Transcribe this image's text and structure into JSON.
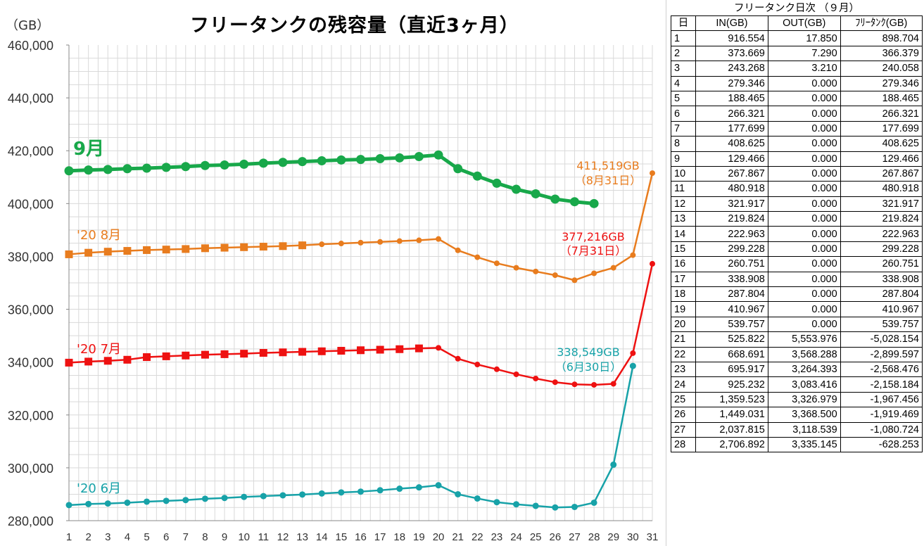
{
  "chart_data": {
    "type": "line",
    "title": "フリータンクの残容量（直近3ヶ月）",
    "unit_label": "（GB）",
    "ylim": [
      280000,
      460000
    ],
    "y_ticks": [
      "280,000",
      "300,000",
      "320,000",
      "340,000",
      "360,000",
      "380,000",
      "400,000",
      "420,000",
      "440,000",
      "460,000"
    ],
    "y_tick_values": [
      280000,
      300000,
      320000,
      340000,
      360000,
      380000,
      400000,
      420000,
      440000,
      460000
    ],
    "x_categories": [
      "1",
      "2",
      "3",
      "4",
      "5",
      "6",
      "7",
      "8",
      "9",
      "10",
      "11",
      "12",
      "13",
      "14",
      "15",
      "16",
      "17",
      "18",
      "19",
      "20",
      "21",
      "22",
      "23",
      "24",
      "25",
      "26",
      "27",
      "28",
      "29",
      "30",
      "31"
    ],
    "grid": true,
    "series": [
      {
        "name": "'20 6月",
        "color": "#17A2A8",
        "x": [
          1,
          2,
          3,
          4,
          5,
          6,
          7,
          8,
          9,
          10,
          11,
          12,
          13,
          14,
          15,
          16,
          17,
          18,
          19,
          20,
          21,
          22,
          23,
          24,
          25,
          26,
          27,
          28,
          29,
          30
        ],
        "values": [
          285900,
          286300,
          286500,
          286800,
          287200,
          287500,
          287800,
          288300,
          288600,
          289000,
          289300,
          289600,
          289900,
          290300,
          290700,
          291000,
          291500,
          292100,
          292600,
          293400,
          290000,
          288400,
          287000,
          286200,
          285600,
          285000,
          285200,
          286800,
          301200,
          338549
        ]
      },
      {
        "name": "'20 7月",
        "color": "#EE1111",
        "x": [
          1,
          2,
          3,
          4,
          5,
          6,
          7,
          8,
          9,
          10,
          11,
          12,
          13,
          14,
          15,
          16,
          17,
          18,
          19,
          20,
          21,
          22,
          23,
          24,
          25,
          26,
          27,
          28,
          29,
          30,
          31
        ],
        "values": [
          339800,
          340200,
          340500,
          340900,
          341900,
          342200,
          342500,
          342800,
          343000,
          343200,
          343500,
          343700,
          343900,
          344100,
          344300,
          344500,
          344700,
          344900,
          345200,
          345400,
          341300,
          339100,
          337300,
          335400,
          333800,
          332400,
          331600,
          331400,
          331800,
          343400,
          377216
        ]
      },
      {
        "name": "'20 8月",
        "color": "#E87C1E",
        "x": [
          1,
          2,
          3,
          4,
          5,
          6,
          7,
          8,
          9,
          10,
          11,
          12,
          13,
          14,
          15,
          16,
          17,
          18,
          19,
          20,
          21,
          22,
          23,
          24,
          25,
          26,
          27,
          28,
          29,
          30,
          31
        ],
        "values": [
          380800,
          381400,
          381800,
          382100,
          382400,
          382600,
          382800,
          383100,
          383300,
          383500,
          383700,
          383900,
          384200,
          384600,
          384900,
          385200,
          385500,
          385800,
          386100,
          386600,
          382300,
          379700,
          377400,
          375700,
          374300,
          372900,
          371000,
          373600,
          375700,
          380500,
          411519
        ]
      },
      {
        "name": "9月",
        "color": "#18A84A",
        "x": [
          1,
          2,
          3,
          4,
          5,
          6,
          7,
          8,
          9,
          10,
          11,
          12,
          13,
          14,
          15,
          16,
          17,
          18,
          19,
          20,
          21,
          22,
          23,
          24,
          25,
          26,
          27,
          28
        ],
        "values": [
          412400,
          412700,
          412900,
          413200,
          413400,
          413700,
          414000,
          414400,
          414600,
          414900,
          415300,
          415600,
          415900,
          416200,
          416500,
          416700,
          417000,
          417300,
          417800,
          418400,
          413200,
          410400,
          407700,
          405400,
          403700,
          401700,
          400700,
          400000
        ]
      }
    ],
    "annotations": {
      "september_label": "9月",
      "august_label": "'20 8月",
      "july_label": "'20 7月",
      "june_label": "'20 6月",
      "aug_end_value": "411,519GB",
      "aug_end_date": "（8月31日）",
      "jul_end_value": "377,216GB",
      "jul_end_date": "（7月31日）",
      "jun_end_value": "338,549GB",
      "jun_end_date": "（6月30日）"
    }
  },
  "table": {
    "caption": "フリータンク日次 （９月）",
    "headers": [
      "日",
      "IN(GB)",
      "OUT(GB)",
      "ﾌﾘｰﾀﾝｸ(GB)"
    ],
    "rows": [
      [
        "1",
        "916.554",
        "17.850",
        "898.704"
      ],
      [
        "2",
        "373.669",
        "7.290",
        "366.379"
      ],
      [
        "3",
        "243.268",
        "3.210",
        "240.058"
      ],
      [
        "4",
        "279.346",
        "0.000",
        "279.346"
      ],
      [
        "5",
        "188.465",
        "0.000",
        "188.465"
      ],
      [
        "6",
        "266.321",
        "0.000",
        "266.321"
      ],
      [
        "7",
        "177.699",
        "0.000",
        "177.699"
      ],
      [
        "8",
        "408.625",
        "0.000",
        "408.625"
      ],
      [
        "9",
        "129.466",
        "0.000",
        "129.466"
      ],
      [
        "10",
        "267.867",
        "0.000",
        "267.867"
      ],
      [
        "11",
        "480.918",
        "0.000",
        "480.918"
      ],
      [
        "12",
        "321.917",
        "0.000",
        "321.917"
      ],
      [
        "13",
        "219.824",
        "0.000",
        "219.824"
      ],
      [
        "14",
        "222.963",
        "0.000",
        "222.963"
      ],
      [
        "15",
        "299.228",
        "0.000",
        "299.228"
      ],
      [
        "16",
        "260.751",
        "0.000",
        "260.751"
      ],
      [
        "17",
        "338.908",
        "0.000",
        "338.908"
      ],
      [
        "18",
        "287.804",
        "0.000",
        "287.804"
      ],
      [
        "19",
        "410.967",
        "0.000",
        "410.967"
      ],
      [
        "20",
        "539.757",
        "0.000",
        "539.757"
      ],
      [
        "21",
        "525.822",
        "5,553.976",
        "-5,028.154"
      ],
      [
        "22",
        "668.691",
        "3,568.288",
        "-2,899.597"
      ],
      [
        "23",
        "695.917",
        "3,264.393",
        "-2,568.476"
      ],
      [
        "24",
        "925.232",
        "3,083.416",
        "-2,158.184"
      ],
      [
        "25",
        "1,359.523",
        "3,326.979",
        "-1,967.456"
      ],
      [
        "26",
        "1,449.031",
        "3,368.500",
        "-1,919.469"
      ],
      [
        "27",
        "2,037.815",
        "3,118.539",
        "-1,080.724"
      ],
      [
        "28",
        "2,706.892",
        "3,335.145",
        "-628.253"
      ]
    ]
  }
}
